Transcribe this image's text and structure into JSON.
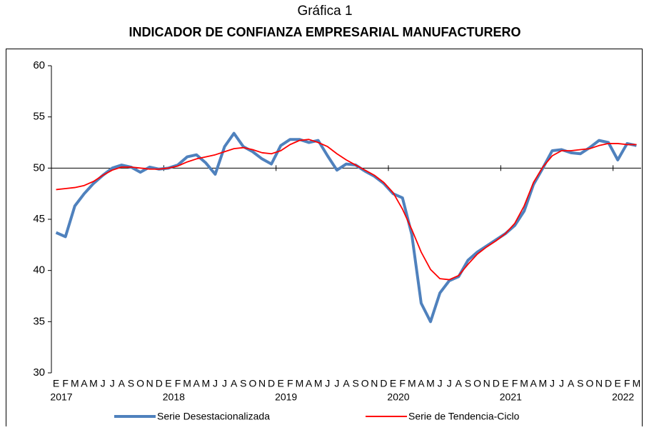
{
  "chart_data": {
    "type": "line",
    "title": "Gráfica 1",
    "subtitle": "INDICADOR DE CONFIANZA EMPRESARIAL MANUFACTURERO",
    "categories": [
      "E",
      "F",
      "M",
      "A",
      "M",
      "J",
      "J",
      "A",
      "S",
      "O",
      "N",
      "D",
      "E",
      "F",
      "M",
      "A",
      "M",
      "J",
      "J",
      "A",
      "S",
      "O",
      "N",
      "D",
      "E",
      "F",
      "M",
      "A",
      "M",
      "J",
      "J",
      "A",
      "S",
      "O",
      "N",
      "D",
      "E",
      "F",
      "M",
      "A",
      "M",
      "J",
      "J",
      "A",
      "S",
      "O",
      "N",
      "D",
      "E",
      "F",
      "M",
      "A",
      "M",
      "J",
      "J",
      "A",
      "S",
      "O",
      "N",
      "D",
      "E",
      "F",
      "M"
    ],
    "years": [
      "2017",
      null,
      null,
      null,
      null,
      null,
      null,
      null,
      null,
      null,
      null,
      null,
      "2018",
      null,
      null,
      null,
      null,
      null,
      null,
      null,
      null,
      null,
      null,
      null,
      "2019",
      null,
      null,
      null,
      null,
      null,
      null,
      null,
      null,
      null,
      null,
      null,
      "2020",
      null,
      null,
      null,
      null,
      null,
      null,
      null,
      null,
      null,
      null,
      null,
      "2021",
      null,
      null,
      null,
      null,
      null,
      null,
      null,
      null,
      null,
      null,
      null,
      "2022",
      null,
      null
    ],
    "series": [
      {
        "name": "Serie Desestacionalizada",
        "color": "#4f81bd",
        "values": [
          43.7,
          43.3,
          46.3,
          47.5,
          48.5,
          49.3,
          50.0,
          50.3,
          50.1,
          49.6,
          50.1,
          49.9,
          50.0,
          50.3,
          51.1,
          51.3,
          50.5,
          49.4,
          52.1,
          53.4,
          52.1,
          51.6,
          50.9,
          50.4,
          52.2,
          52.8,
          52.8,
          52.5,
          52.7,
          51.2,
          49.8,
          50.4,
          50.3,
          49.7,
          49.2,
          48.5,
          47.5,
          47.1,
          43.5,
          36.8,
          35.0,
          37.8,
          39.0,
          39.4,
          41.0,
          41.8,
          42.4,
          43.0,
          43.6,
          44.4,
          45.8,
          48.4,
          50.0,
          51.7,
          51.8,
          51.5,
          51.4,
          52.0,
          52.7,
          52.5,
          50.8,
          52.4,
          52.2
        ]
      },
      {
        "name": "Serie de Tendencia-Ciclo",
        "color": "#ff0000",
        "values": [
          47.9,
          48.0,
          48.1,
          48.3,
          48.7,
          49.3,
          49.8,
          50.1,
          50.1,
          50.0,
          49.9,
          49.9,
          50.0,
          50.2,
          50.6,
          50.9,
          51.1,
          51.3,
          51.6,
          51.9,
          52.0,
          51.8,
          51.5,
          51.4,
          51.7,
          52.3,
          52.7,
          52.8,
          52.5,
          52.1,
          51.4,
          50.8,
          50.3,
          49.8,
          49.3,
          48.6,
          47.6,
          46.0,
          44.0,
          41.8,
          40.1,
          39.2,
          39.1,
          39.5,
          40.6,
          41.6,
          42.3,
          42.9,
          43.6,
          44.6,
          46.3,
          48.6,
          50.1,
          51.2,
          51.7,
          51.7,
          51.8,
          51.9,
          52.2,
          52.4,
          52.4,
          52.3,
          52.3
        ]
      }
    ],
    "ylim": [
      30,
      60
    ],
    "yticks": [
      30,
      35,
      40,
      45,
      50,
      55,
      60
    ],
    "x_axis_crossing": 50
  }
}
